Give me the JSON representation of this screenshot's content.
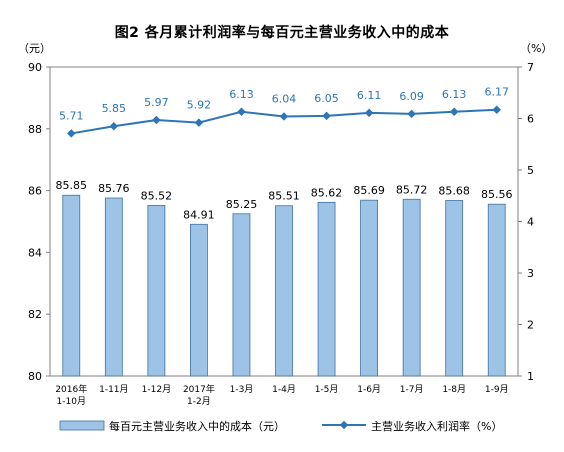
{
  "chart_data": {
    "title": "图2 各月累计利润率与每百元主营业务收入中的成本",
    "type": "bar+line",
    "categories": [
      [
        "2016年",
        "1-10月"
      ],
      [
        "1-11月"
      ],
      [
        "1-12月"
      ],
      [
        "2017年",
        "1-2月"
      ],
      [
        "1-3月"
      ],
      [
        "1-4月"
      ],
      [
        "1-5月"
      ],
      [
        "1-6月"
      ],
      [
        "1-7月"
      ],
      [
        "1-8月"
      ],
      [
        "1-9月"
      ]
    ],
    "left_axis": {
      "unit": "（元）",
      "ylim": [
        80,
        90
      ],
      "ticks": [
        "80",
        "82",
        "84",
        "86",
        "88",
        "90"
      ]
    },
    "right_axis": {
      "unit": "（%）",
      "ylim": [
        1,
        7
      ],
      "ticks": [
        "1",
        "2",
        "3",
        "4",
        "5",
        "6",
        "7"
      ]
    },
    "series": [
      {
        "name": "每百元主营业务收入中的成本（元）",
        "type": "bar",
        "axis": "left",
        "color": "#9DC3E6",
        "values": [
          85.85,
          85.76,
          85.52,
          84.91,
          85.25,
          85.51,
          85.62,
          85.69,
          85.72,
          85.68,
          85.56
        ],
        "labels": [
          "85.85",
          "85.76",
          "85.52",
          "84.91",
          "85.25",
          "85.51",
          "85.62",
          "85.69",
          "85.72",
          "85.68",
          "85.56"
        ]
      },
      {
        "name": "主营业务收入利润率（%）",
        "type": "line",
        "axis": "right",
        "color": "#2E75B6",
        "values": [
          5.71,
          5.85,
          5.97,
          5.92,
          6.13,
          6.04,
          6.05,
          6.11,
          6.09,
          6.13,
          6.17
        ],
        "labels": [
          "5.71",
          "5.85",
          "5.97",
          "5.92",
          "6.13",
          "6.04",
          "6.05",
          "6.11",
          "6.09",
          "6.13",
          "6.17"
        ]
      }
    ],
    "grid": false,
    "legend": "bottom"
  }
}
